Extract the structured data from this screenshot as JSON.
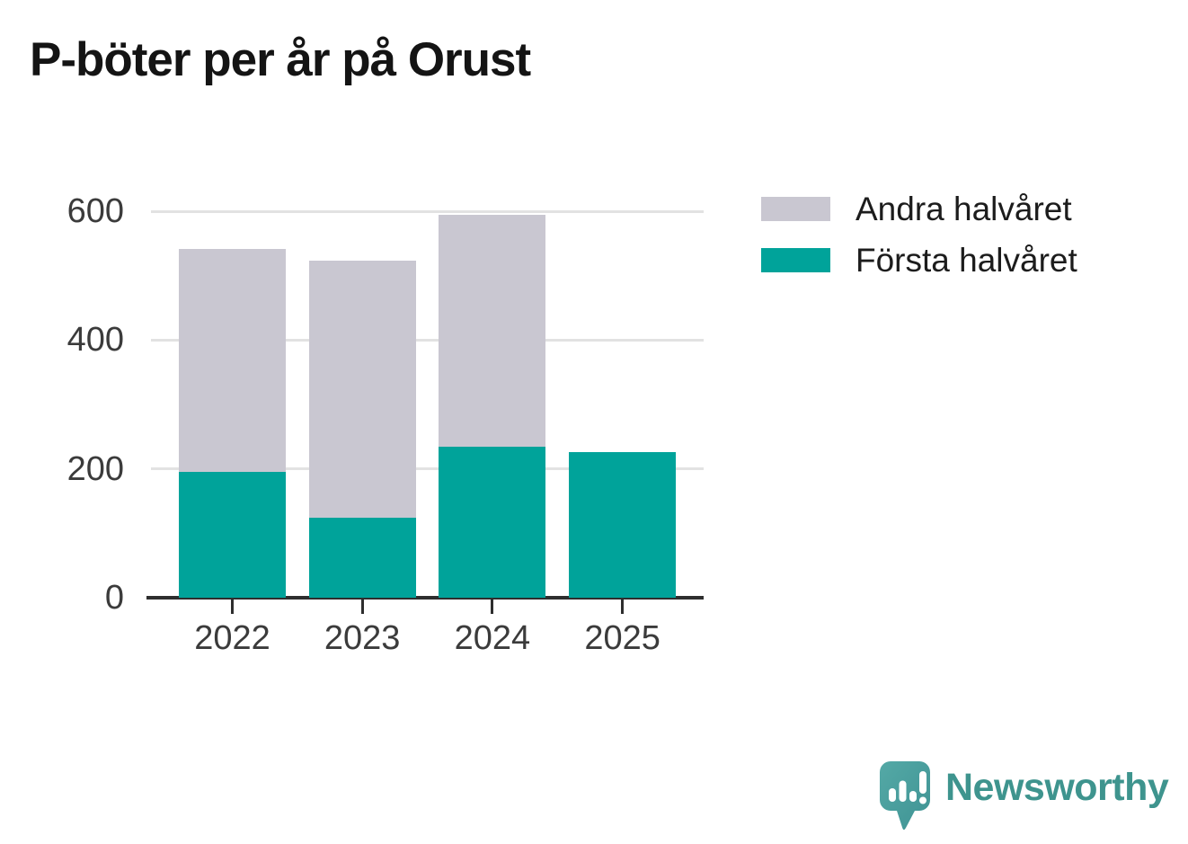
{
  "title": "P-böter per år på Orust",
  "chart_data": {
    "type": "bar",
    "stacked": true,
    "title": "P-böter per år på Orust",
    "categories": [
      "2022",
      "2023",
      "2024",
      "2025"
    ],
    "series": [
      {
        "name": "Första halvåret",
        "color": "#00a39a",
        "values": [
          195,
          124,
          235,
          226
        ]
      },
      {
        "name": "Andra halvåret",
        "color": "#c9c7d1",
        "values": [
          347,
          399,
          359,
          0
        ]
      }
    ],
    "totals": [
      542,
      523,
      594,
      226
    ],
    "ylim": [
      0,
      600
    ],
    "yticks": [
      0,
      200,
      400,
      600
    ],
    "xlabel": "",
    "ylabel": "",
    "grid": "horizontal",
    "legend_position": "top-right",
    "legend_order": [
      "Andra halvåret",
      "Första halvåret"
    ]
  },
  "legend": {
    "items": [
      {
        "label": "Andra halvåret",
        "color": "#c9c7d1"
      },
      {
        "label": "Första halvåret",
        "color": "#00a39a"
      }
    ]
  },
  "branding": {
    "logo_text": "Newsworthy",
    "logo_color": "#3e948e",
    "icon": "newsworthy-speech-bubble-barchart-icon"
  },
  "colors": {
    "axis": "#2e2e2e",
    "gridline": "#e2e2e2",
    "tick_label": "#3b3b3b",
    "title_text": "#141414",
    "background": "#ffffff"
  }
}
